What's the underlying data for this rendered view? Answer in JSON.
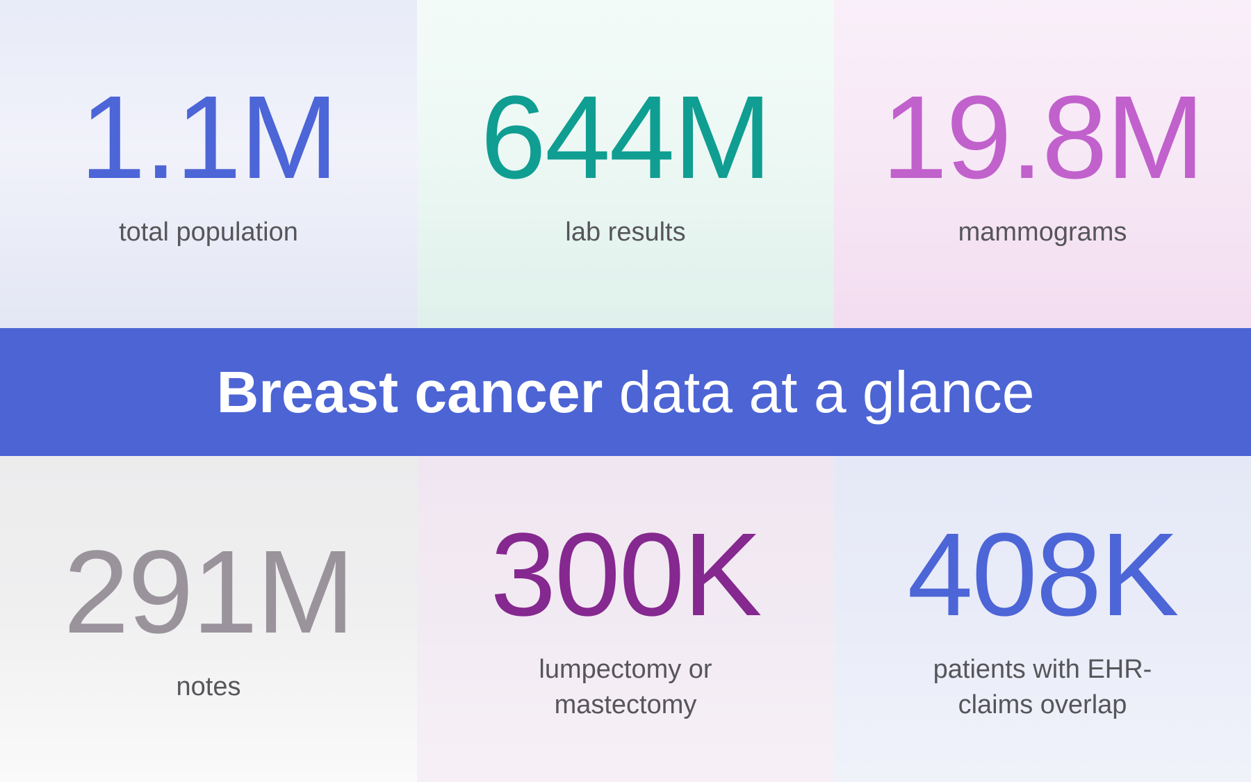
{
  "banner": {
    "title_bold": "Breast cancer",
    "title_light": " data at a glance",
    "bg_color": "#4c64d4",
    "text_color": "#ffffff"
  },
  "label_color": "#56555a",
  "stats": [
    {
      "value": "1.1M",
      "label": "total population",
      "value_color": "#4c65d7",
      "bg_top": "#e8ebf8",
      "bg_mid": "#f1f2fa",
      "bg_bottom": "#e3e6f4"
    },
    {
      "value": "644M",
      "label": "lab results",
      "value_color": "#0f9e91",
      "bg_top": "#f3fbf8",
      "bg_mid": "#edf8f4",
      "bg_bottom": "#dff0eb"
    },
    {
      "value": "19.8M",
      "label": "mammograms",
      "value_color": "#c161cc",
      "bg_top": "#f9eff9",
      "bg_mid": "#f7e9f6",
      "bg_bottom": "#f2ddf0"
    },
    {
      "value": "291M",
      "label": "notes",
      "value_color": "#9a939c",
      "bg_top": "#ececed",
      "bg_mid": "#efeff0",
      "bg_bottom": "#fafafa"
    },
    {
      "value": "300K",
      "label": "lumpectomy or mastectomy",
      "value_color": "#85288f",
      "bg_top": "#f0e6f1",
      "bg_mid": "#f2eaf3",
      "bg_bottom": "#f6f0f6"
    },
    {
      "value": "408K",
      "label": "patients with EHR-claims overlap",
      "value_color": "#4c65d7",
      "bg_top": "#e5e8f6",
      "bg_mid": "#e9ecf8",
      "bg_bottom": "#f0f2fa"
    }
  ],
  "chart_data": {
    "type": "table",
    "title": "Breast cancer data at a glance",
    "categories": [
      "total population",
      "lab results",
      "mammograms",
      "notes",
      "lumpectomy or mastectomy",
      "patients with EHR-claims overlap"
    ],
    "values": [
      "1.1M",
      "644M",
      "19.8M",
      "291M",
      "300K",
      "408K"
    ],
    "values_numeric": [
      1100000,
      644000000,
      19800000,
      291000000,
      300000,
      408000
    ]
  }
}
